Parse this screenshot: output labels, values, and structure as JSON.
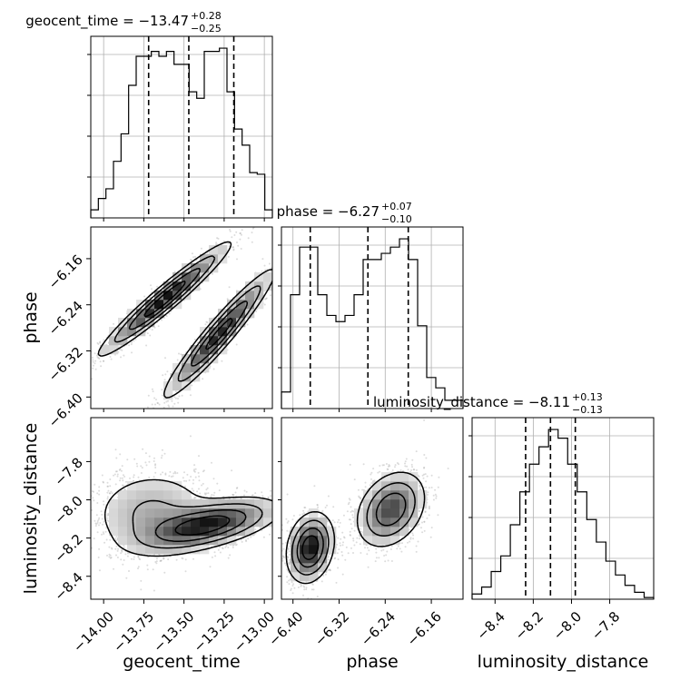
{
  "chart_data": {
    "type": "corner",
    "parameters": [
      "geocent_time",
      "phase",
      "luminosity_distance"
    ],
    "axis_labels": {
      "geocent_time": "geocent_time",
      "phase": "phase",
      "luminosity_distance": "luminosity_distance"
    },
    "titles": [
      {
        "param": "geocent_time",
        "text": "geocent_time = −13.47",
        "plus": "+0.28",
        "minus": "−0.25"
      },
      {
        "param": "phase",
        "text": "phase = −6.27",
        "plus": "+0.07",
        "minus": "−0.10"
      },
      {
        "param": "luminosity_distance",
        "text": "luminosity_distance = −8.11",
        "plus": "+0.13",
        "minus": "−0.13"
      }
    ],
    "ranges": {
      "geocent_time": [
        -14.08,
        -12.95
      ],
      "phase": [
        -6.42,
        -6.105
      ],
      "luminosity_distance": [
        -8.52,
        -7.57
      ]
    },
    "ticks": {
      "geocent_time": {
        "values": [
          -14.0,
          -13.75,
          -13.5,
          -13.25,
          -13.0
        ],
        "labels": [
          "−14.00",
          "−13.75",
          "−13.50",
          "−13.25",
          "−13.00"
        ]
      },
      "phase": {
        "values": [
          -6.4,
          -6.32,
          -6.24,
          -6.16
        ],
        "labels": [
          "−6.40",
          "−6.32",
          "−6.24",
          "−6.16"
        ]
      },
      "luminosity_distance": {
        "values": [
          -8.4,
          -8.2,
          -8.0,
          -7.8
        ],
        "labels": [
          "−8.4",
          "−8.2",
          "−8.0",
          "−7.8"
        ]
      }
    },
    "quantiles": {
      "geocent_time": [
        -13.72,
        -13.47,
        -13.19
      ],
      "phase": [
        -6.37,
        -6.27,
        -6.2
      ],
      "luminosity_distance": [
        -8.24,
        -8.11,
        -7.98
      ]
    },
    "histograms": {
      "geocent_time": [
        0.05,
        0.12,
        0.18,
        0.35,
        0.52,
        0.82,
        1.0,
        1.0,
        1.03,
        1.0,
        1.03,
        0.95,
        0.95,
        0.78,
        0.74,
        1.03,
        1.03,
        1.05,
        0.78,
        0.55,
        0.45,
        0.28,
        0.27,
        0.05
      ],
      "phase": [
        0.08,
        0.55,
        0.78,
        0.78,
        0.55,
        0.45,
        0.42,
        0.45,
        0.55,
        0.72,
        0.72,
        0.75,
        0.78,
        0.82,
        0.72,
        0.4,
        0.15,
        0.1,
        0.04,
        0.04
      ],
      "luminosity_distance": [
        0.03,
        0.07,
        0.16,
        0.25,
        0.43,
        0.62,
        0.78,
        0.88,
        0.98,
        0.93,
        0.78,
        0.62,
        0.46,
        0.33,
        0.22,
        0.14,
        0.08,
        0.04,
        0.01
      ]
    },
    "panels_2d": [
      {
        "x": "geocent_time",
        "y": "phase",
        "modes": [
          {
            "cx": -13.62,
            "cy": -6.23,
            "sx": 0.2,
            "sy": 0.048,
            "rho": 0.96,
            "w": 0.5
          },
          {
            "cx": -13.28,
            "cy": -6.29,
            "sx": 0.17,
            "sy": 0.055,
            "rho": 0.95,
            "w": 0.5
          }
        ]
      },
      {
        "x": "geocent_time",
        "y": "luminosity_distance",
        "modes": [
          {
            "cx": -13.35,
            "cy": -8.13,
            "sx": 0.22,
            "sy": 0.07,
            "rho": 0.55,
            "w": 0.6
          },
          {
            "cx": -13.7,
            "cy": -8.07,
            "sx": 0.2,
            "sy": 0.12,
            "rho": 0.05,
            "w": 0.4
          }
        ]
      },
      {
        "x": "phase",
        "y": "luminosity_distance",
        "modes": [
          {
            "cx": -6.23,
            "cy": -8.05,
            "sx": 0.03,
            "sy": 0.1,
            "rho": 0.3,
            "w": 0.55
          },
          {
            "cx": -6.37,
            "cy": -8.25,
            "sx": 0.02,
            "sy": 0.09,
            "rho": 0.2,
            "w": 0.45
          }
        ]
      }
    ],
    "grid": true,
    "colors": {
      "ink": "#000000",
      "grid": "#b0b0b0",
      "scatter": "#9a9a9a"
    }
  }
}
